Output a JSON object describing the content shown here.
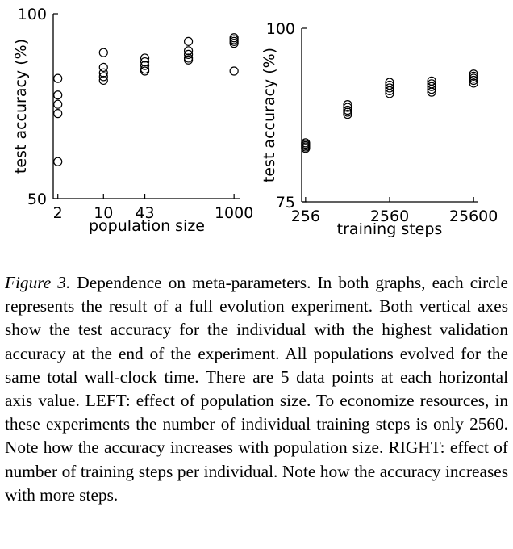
{
  "chart_data": [
    {
      "type": "scatter",
      "xlabel": "population size",
      "ylabel": "test accuracy (%)",
      "x_scale": "log",
      "xlim": [
        1.7,
        1250
      ],
      "ylim": [
        50,
        100
      ],
      "x_ticks": [
        2,
        10,
        43,
        1000
      ],
      "x_tick_labels": [
        "2",
        "10",
        "43",
        "1000"
      ],
      "y_ticks": [
        50,
        100
      ],
      "y_tick_labels": [
        "50",
        "100"
      ],
      "points": [
        {
          "x": 2,
          "y": 82.5
        },
        {
          "x": 2,
          "y": 78.0
        },
        {
          "x": 2,
          "y": 75.5
        },
        {
          "x": 2,
          "y": 73.0
        },
        {
          "x": 2,
          "y": 60.0
        },
        {
          "x": 10,
          "y": 89.5
        },
        {
          "x": 10,
          "y": 85.5
        },
        {
          "x": 10,
          "y": 84.0
        },
        {
          "x": 10,
          "y": 83.0
        },
        {
          "x": 10,
          "y": 82.0
        },
        {
          "x": 43,
          "y": 88.0
        },
        {
          "x": 43,
          "y": 87.0
        },
        {
          "x": 43,
          "y": 86.0
        },
        {
          "x": 43,
          "y": 85.0
        },
        {
          "x": 43,
          "y": 84.5
        },
        {
          "x": 200,
          "y": 92.5
        },
        {
          "x": 200,
          "y": 90.0
        },
        {
          "x": 200,
          "y": 89.0
        },
        {
          "x": 200,
          "y": 88.0
        },
        {
          "x": 200,
          "y": 87.5
        },
        {
          "x": 1000,
          "y": 93.5
        },
        {
          "x": 1000,
          "y": 93.0
        },
        {
          "x": 1000,
          "y": 92.5
        },
        {
          "x": 1000,
          "y": 92.0
        },
        {
          "x": 1000,
          "y": 84.5
        }
      ],
      "grid": false
    },
    {
      "type": "scatter",
      "xlabel": "training steps",
      "ylabel": "test accuracy (%)",
      "x_scale": "log",
      "xlim": [
        230,
        28500
      ],
      "ylim": [
        75,
        100
      ],
      "x_ticks": [
        256,
        2560,
        25600
      ],
      "x_tick_labels": [
        "256",
        "2560",
        "25600"
      ],
      "y_ticks": [
        75,
        100
      ],
      "y_tick_labels": [
        "75",
        "100"
      ],
      "points": [
        {
          "x": 256,
          "y": 83.5
        },
        {
          "x": 256,
          "y": 83.3
        },
        {
          "x": 256,
          "y": 83.1
        },
        {
          "x": 256,
          "y": 82.9
        },
        {
          "x": 256,
          "y": 82.7
        },
        {
          "x": 810,
          "y": 89.0
        },
        {
          "x": 810,
          "y": 88.6
        },
        {
          "x": 810,
          "y": 88.2
        },
        {
          "x": 810,
          "y": 87.9
        },
        {
          "x": 810,
          "y": 87.6
        },
        {
          "x": 2560,
          "y": 92.2
        },
        {
          "x": 2560,
          "y": 91.8
        },
        {
          "x": 2560,
          "y": 91.4
        },
        {
          "x": 2560,
          "y": 91.0
        },
        {
          "x": 2560,
          "y": 90.6
        },
        {
          "x": 8100,
          "y": 92.4
        },
        {
          "x": 8100,
          "y": 92.0
        },
        {
          "x": 8100,
          "y": 91.6
        },
        {
          "x": 8100,
          "y": 91.2
        },
        {
          "x": 8100,
          "y": 90.8
        },
        {
          "x": 25600,
          "y": 93.4
        },
        {
          "x": 25600,
          "y": 93.1
        },
        {
          "x": 25600,
          "y": 92.8
        },
        {
          "x": 25600,
          "y": 92.5
        },
        {
          "x": 25600,
          "y": 92.1
        }
      ],
      "grid": false
    }
  ],
  "caption": {
    "lead": "Figure 3.",
    "body": " Dependence on meta-parameters.  In both graphs, each circle represents the result of a full evolution experiment.  Both vertical axes show the test accuracy for the individual with the highest validation accuracy at the end of the experiment. All populations evolved for the same total wall-clock time.  There are 5 data points at each horizontal axis value.  LEFT: effect of population size.  To economize resources, in these experiments the number of individual training steps is only 2560. Note how the accuracy increases with population size.  RIGHT: effect of number of training steps per individual. Note how the accuracy increases with more steps."
  }
}
